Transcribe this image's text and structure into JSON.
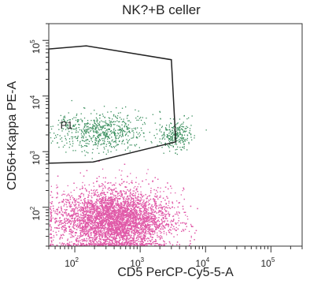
{
  "chart_data": {
    "type": "scatter",
    "title": "NK?+B celler",
    "xlabel": "CD5 PerCP-Cy5-5-A",
    "ylabel": "CD56+Kappa PE-A",
    "x_scale": "log",
    "y_scale": "log",
    "xlim": [
      40,
      300000
    ],
    "ylim": [
      20,
      200000
    ],
    "x_ticks": [
      {
        "value": 100,
        "label": "10^2"
      },
      {
        "value": 1000,
        "label": "10^3"
      },
      {
        "value": 10000,
        "label": "10^4"
      },
      {
        "value": 100000,
        "label": "10^5"
      }
    ],
    "y_ticks": [
      {
        "value": 100,
        "label": "10^2"
      },
      {
        "value": 1000,
        "label": "10^3"
      },
      {
        "value": 10000,
        "label": "10^4"
      },
      {
        "value": 100000,
        "label": "10^5"
      }
    ],
    "gate": {
      "name": "P1",
      "vertices": [
        [
          40,
          70000
        ],
        [
          150,
          80000
        ],
        [
          3000,
          45000
        ],
        [
          3500,
          1500
        ],
        [
          190,
          650
        ],
        [
          40,
          620
        ]
      ]
    },
    "populations": [
      {
        "color": "#e05aa8",
        "cx": 400,
        "cy": 60,
        "sx_decades": 0.42,
        "sy_decades": 0.28,
        "points": 9000
      },
      {
        "color": "#3a8f5e",
        "cx": 260,
        "cy": 2300,
        "sx_decades": 0.35,
        "sy_decades": 0.18,
        "points": 650
      },
      {
        "color": "#3a8f5e",
        "cx": 3500,
        "cy": 2000,
        "sx_decades": 0.12,
        "sy_decades": 0.12,
        "points": 260
      }
    ],
    "grid": false,
    "legend": "none"
  }
}
